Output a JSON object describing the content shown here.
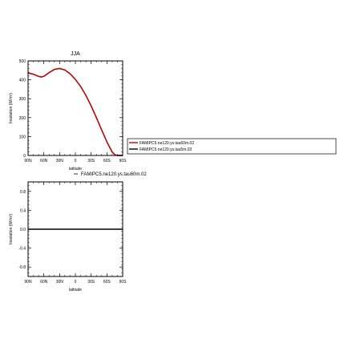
{
  "chart_data": [
    {
      "type": "line",
      "title": "JJA",
      "xlabel": "latitude",
      "ylabel": "Insolation  (W/m²)",
      "x_ticks": [
        -90,
        -60,
        -30,
        0,
        30,
        60,
        90
      ],
      "x_tick_labels": [
        "90N",
        "60N",
        "30N",
        "0",
        "30S",
        "60S",
        "90S"
      ],
      "xlim": [
        -90,
        90
      ],
      "ylim": [
        0,
        500
      ],
      "y_ticks": [
        0,
        100,
        200,
        300,
        400,
        500
      ],
      "y_tick_labels": [
        "0",
        "100",
        "200",
        "300",
        "400",
        "500"
      ],
      "grid": false,
      "legend": "right, outside plot",
      "x": [
        -90,
        -80,
        -70,
        -65,
        -60,
        -50,
        -40,
        -30,
        -20,
        -10,
        0,
        10,
        20,
        30,
        40,
        50,
        60,
        70,
        75,
        80,
        90
      ],
      "series": [
        {
          "name": "FAMIPC5.ne120.ys.tau60m.02",
          "color": "#cc0000",
          "values": [
            436,
            430,
            418,
            415,
            418,
            438,
            455,
            460,
            452,
            432,
            402,
            365,
            318,
            262,
            200,
            135,
            72,
            18,
            4,
            0,
            0
          ]
        },
        {
          "name": "FAMIPC5.ne120.ys.tau5m.02",
          "color": "#000000",
          "values": [
            436,
            430,
            418,
            415,
            418,
            438,
            455,
            460,
            452,
            432,
            402,
            365,
            318,
            262,
            200,
            135,
            72,
            18,
            4,
            0,
            0
          ]
        }
      ]
    },
    {
      "type": "line",
      "title": "",
      "xlabel": "latitude",
      "ylabel": "Insolation  (W/m²)",
      "x_ticks": [
        -90,
        -60,
        -30,
        0,
        30,
        60,
        90
      ],
      "x_tick_labels": [
        "90N",
        "60N",
        "30N",
        "0",
        "30S",
        "60S",
        "90S"
      ],
      "xlim": [
        -90,
        90
      ],
      "ylim": [
        -1,
        1
      ],
      "y_ticks": [
        -0.8,
        -0.4,
        0,
        0.4,
        0.8
      ],
      "y_tick_labels": [
        "-0.8",
        "-0.4",
        "0.0",
        "0.4",
        "0.8"
      ],
      "grid": false,
      "legend": "top, above plot",
      "x": [
        -90,
        90
      ],
      "series": [
        {
          "name": "FAMIPC5.ne120.ys.tau60m.02",
          "color": "#000000",
          "values": [
            0,
            0
          ]
        }
      ]
    }
  ]
}
